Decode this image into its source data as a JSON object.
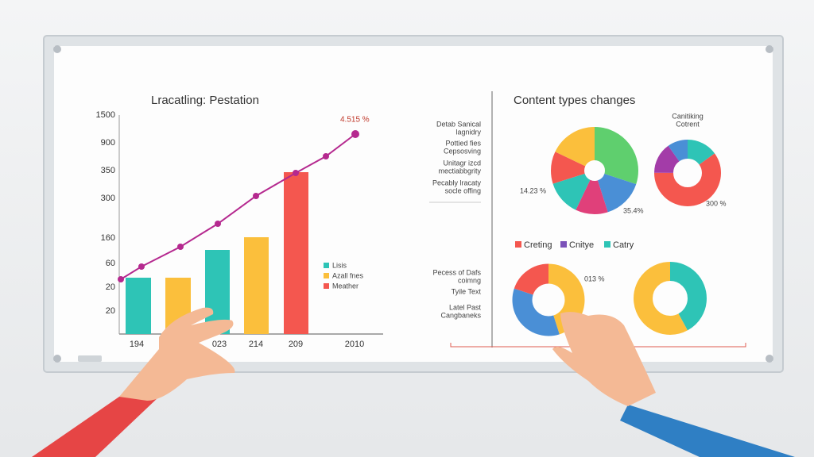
{
  "left_panel": {
    "title": "Lracatling: Pestation",
    "y_labels": [
      "1500",
      "900",
      "350",
      "300",
      "160",
      "60",
      "20",
      "20"
    ],
    "x_labels": [
      "194",
      "023",
      "214",
      "209",
      "2010"
    ],
    "annotation": "4.515 %",
    "legend": [
      "Lisis",
      "Azall fnes",
      "Meather"
    ]
  },
  "right_panel": {
    "title": "Content types changes",
    "side_labels": [
      [
        "Detab Sanical",
        "lagnidry"
      ],
      [
        "Pottied fies",
        "Cepsosving"
      ],
      [
        "Unitagr izcd",
        "mectiabbgrity"
      ],
      [
        "Pecably lracaty",
        "socle offing"
      ]
    ],
    "pie_labels": [
      "14.23 %",
      "35.4%"
    ],
    "donut_title": [
      "Canitiking",
      "Cotrent"
    ],
    "donut_label": "300 %",
    "legend": [
      "Creting",
      "Cnitye",
      "Catry"
    ],
    "lower_labels": [
      [
        "Pecess of Dafs",
        "coimng"
      ],
      [
        "Tyile Text"
      ],
      [
        "Latel Past",
        "Cangbaneks"
      ]
    ],
    "lower_pie_label": "013 %"
  }
}
